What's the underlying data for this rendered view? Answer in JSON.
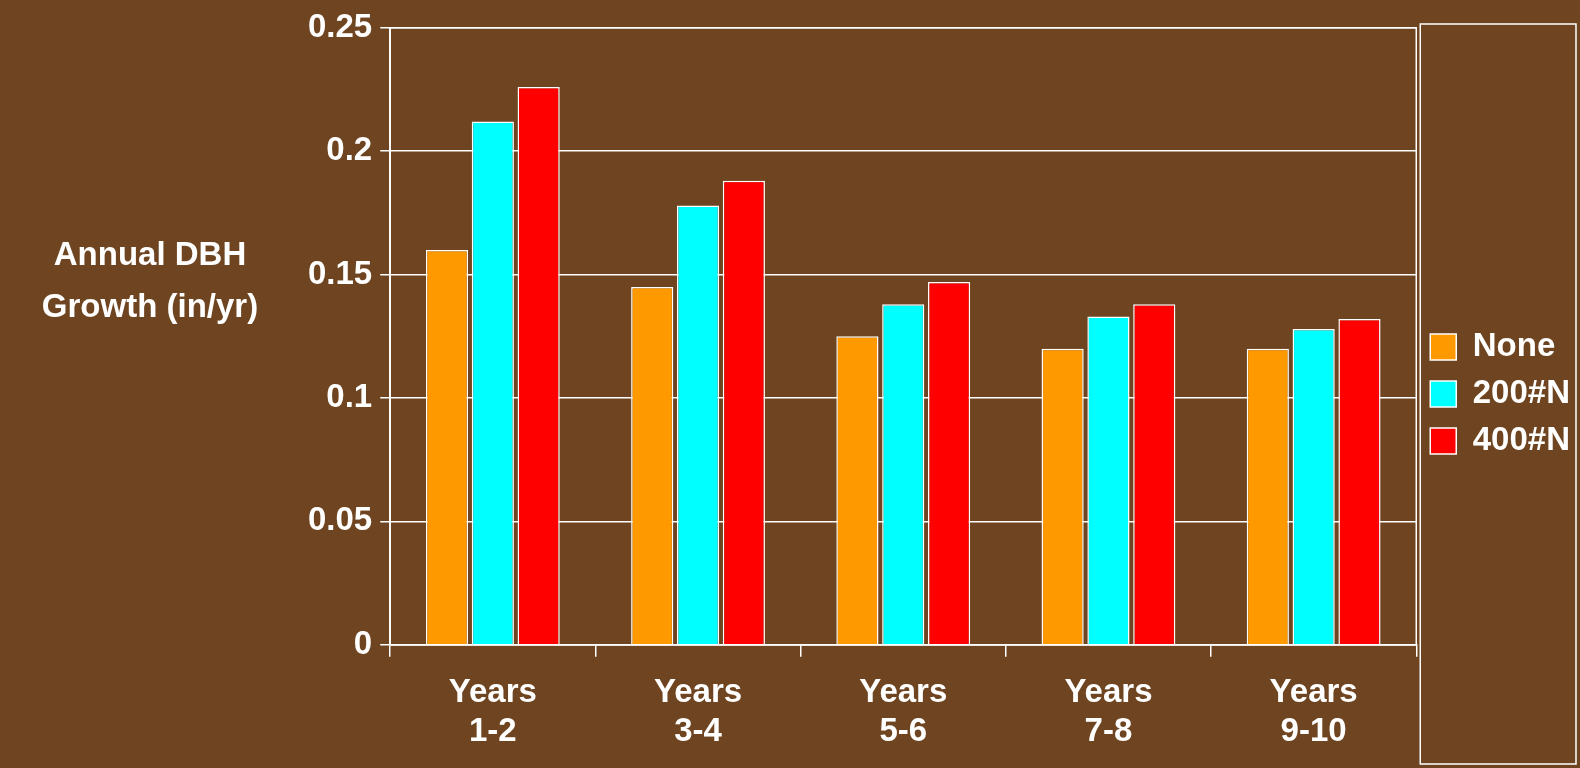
{
  "chart_data": {
    "type": "bar",
    "ylabel": "Annual DBH Growth (in/yr)",
    "categories": [
      "Years 1-2",
      "Years 3-4",
      "Years 5-6",
      "Years 7-8",
      "Years 9-10"
    ],
    "series": [
      {
        "name": "None",
        "color": "#ff9900",
        "values": [
          0.16,
          0.145,
          0.125,
          0.12,
          0.12
        ]
      },
      {
        "name": "200#N",
        "color": "#00ffff",
        "values": [
          0.212,
          0.178,
          0.138,
          0.133,
          0.128
        ]
      },
      {
        "name": "400#N",
        "color": "#ff0000",
        "values": [
          0.226,
          0.188,
          0.147,
          0.138,
          0.132
        ]
      }
    ],
    "ylim": [
      0,
      0.25
    ],
    "yticks": [
      0,
      0.05,
      0.1,
      0.15,
      0.2,
      0.25
    ],
    "grid": "y",
    "legend": "right"
  }
}
